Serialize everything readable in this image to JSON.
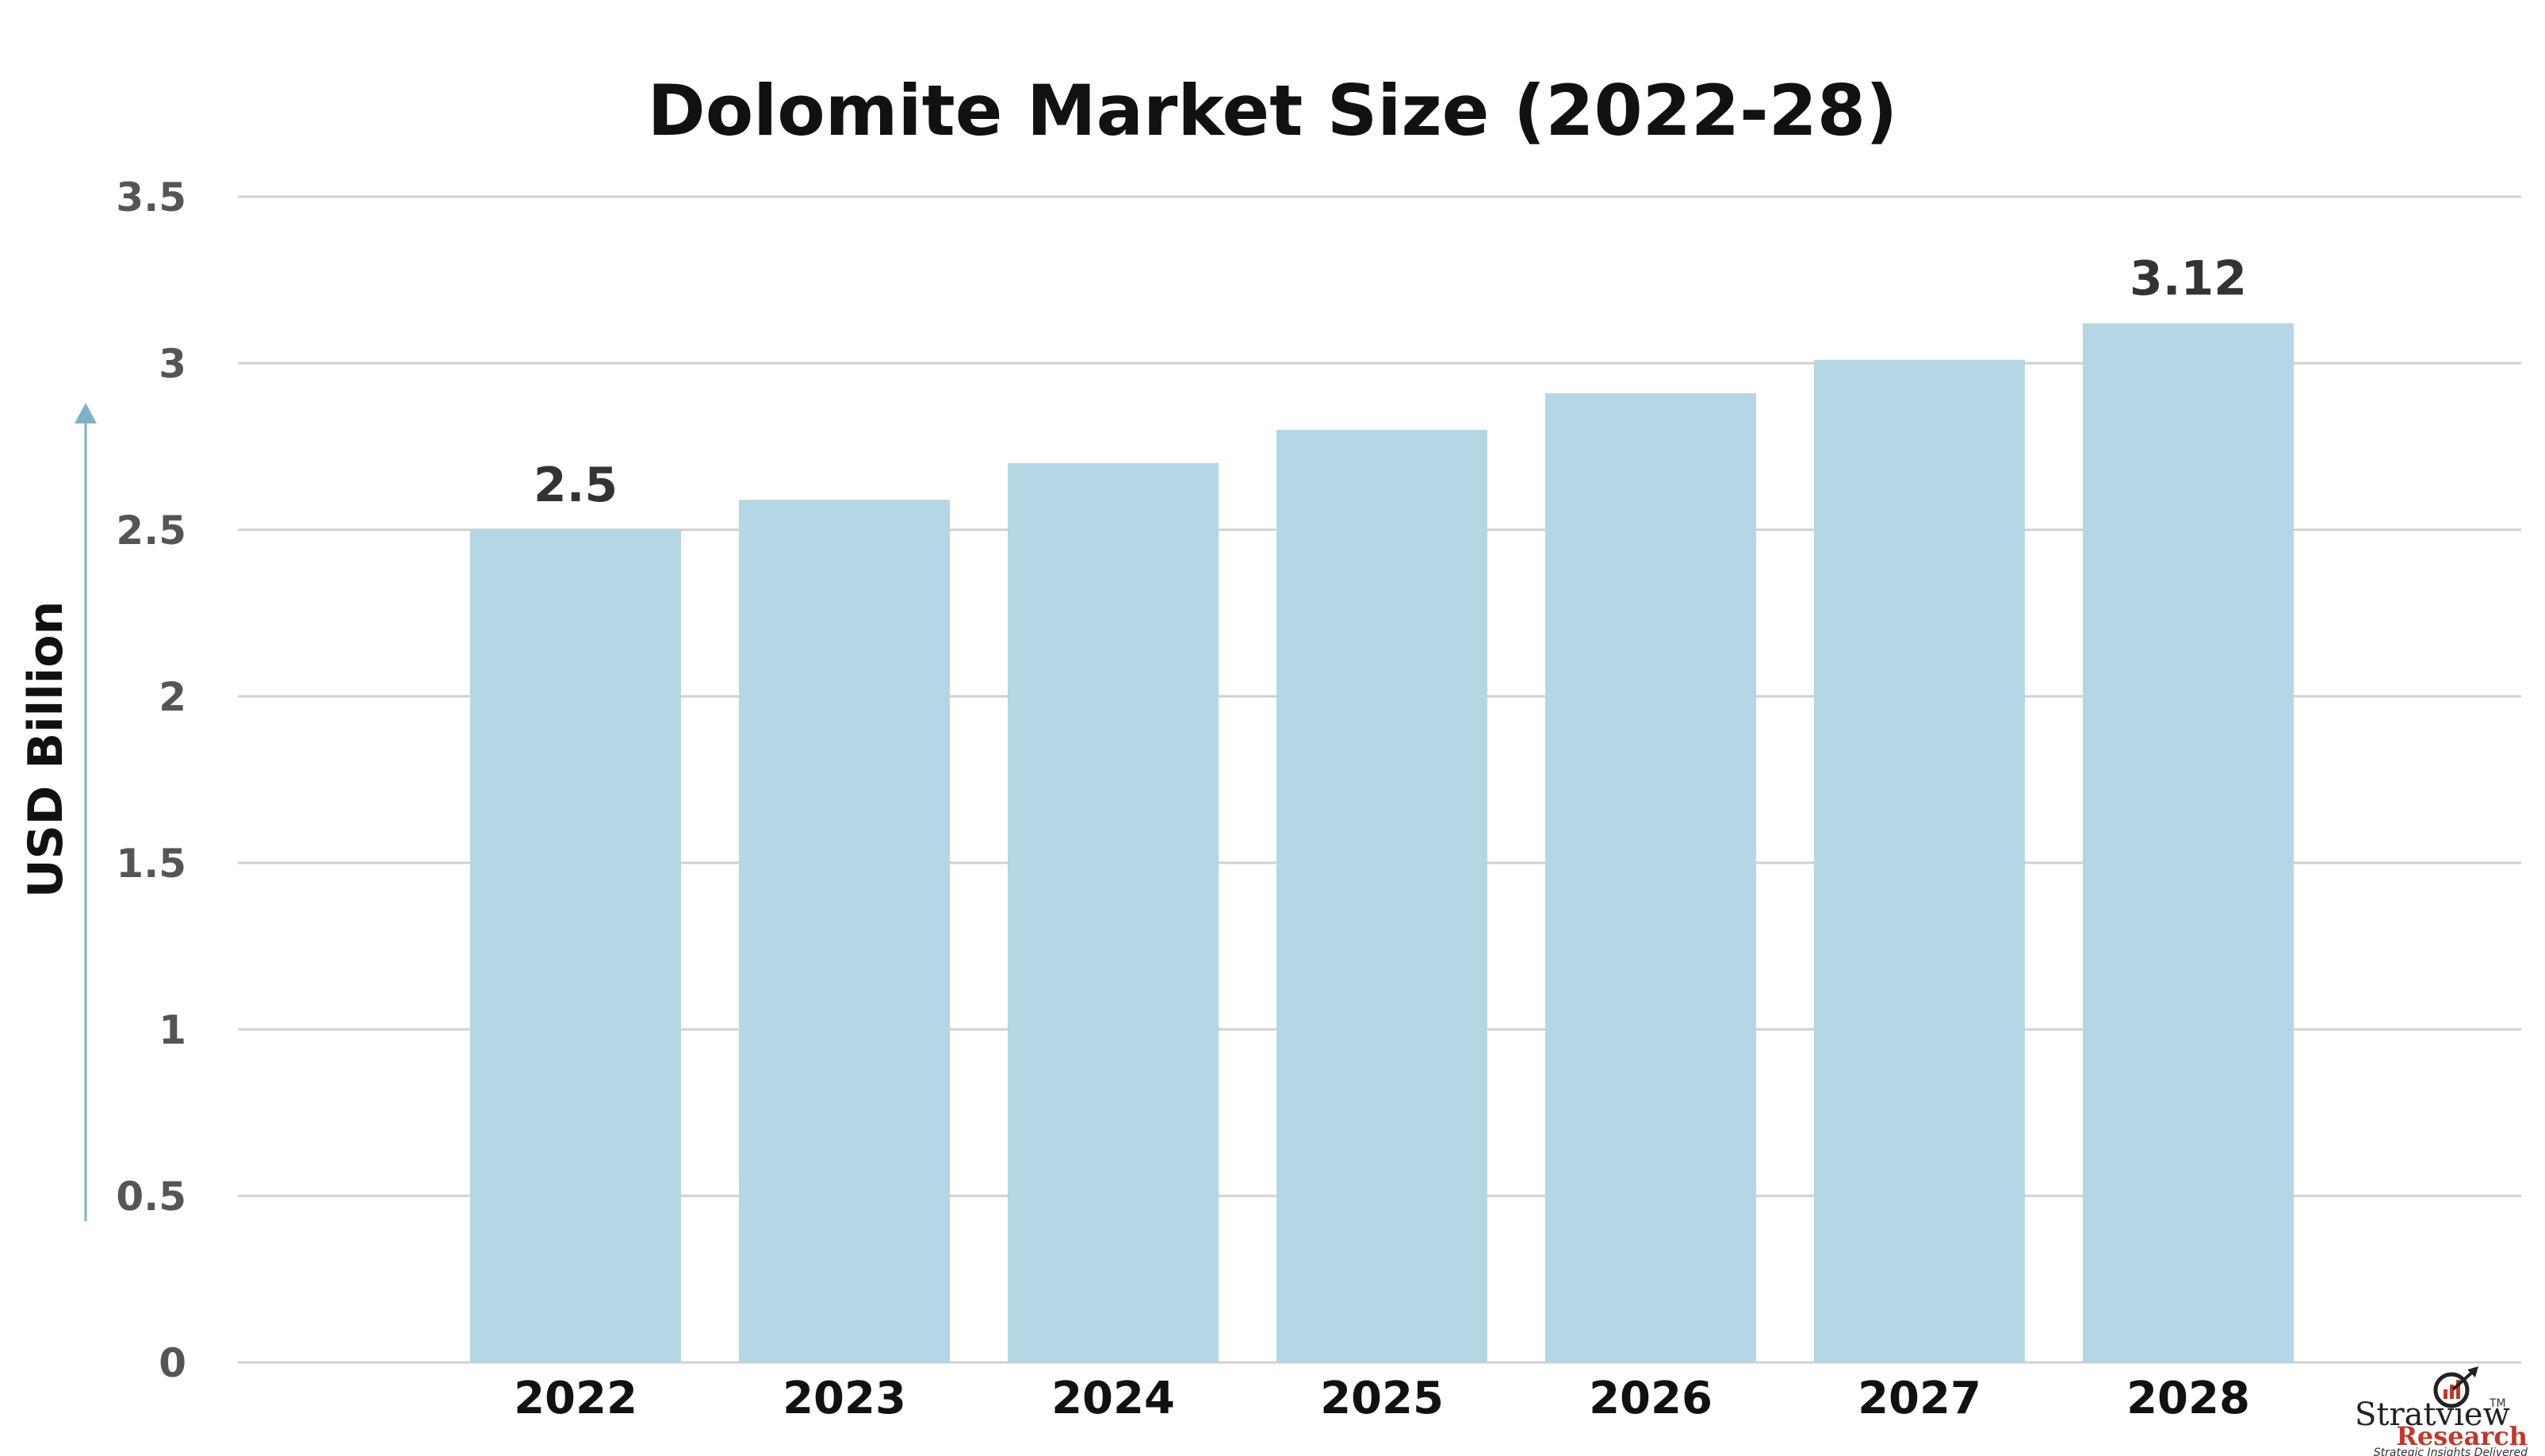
{
  "chart_data": {
    "type": "bar",
    "title": "Dolomite Market Size (2022-28)",
    "ylabel": "USD Billion",
    "xlabel": "",
    "categories": [
      "2022",
      "2023",
      "2024",
      "2025",
      "2026",
      "2027",
      "2028"
    ],
    "values": [
      2.5,
      2.59,
      2.7,
      2.8,
      2.91,
      3.01,
      3.12
    ],
    "data_labels": [
      "2.5",
      "",
      "",
      "",
      "",
      "",
      "3.12"
    ],
    "ylim": [
      0,
      3.5
    ],
    "yticks": [
      "0",
      "0.5",
      "1",
      "1.5",
      "2",
      "2.5",
      "3",
      "3.5"
    ],
    "grid": true,
    "legend": "none",
    "colors": {
      "bar": "#b5d6e5",
      "grid": "#d0d0d0",
      "axis_arrow": "#7fb2c9"
    }
  },
  "logo": {
    "name": "Stratview",
    "sub": "Research",
    "tagline": "Strategic Insights Delivered",
    "tm": "TM",
    "icon": "target-arrow-icon"
  }
}
